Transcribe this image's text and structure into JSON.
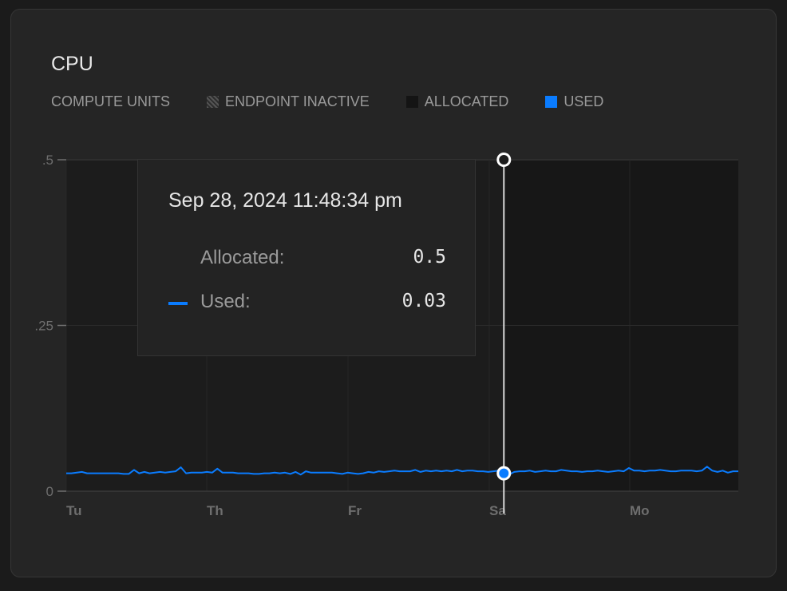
{
  "card": {
    "title": "CPU"
  },
  "legend": {
    "units_label": "COMPUTE UNITS",
    "items": [
      {
        "label": "ENDPOINT INACTIVE",
        "swatch": "hatched"
      },
      {
        "label": "ALLOCATED",
        "swatch": "#141414"
      },
      {
        "label": "USED",
        "swatch": "#0a7cff"
      }
    ]
  },
  "tooltip": {
    "date": "Sep 28, 2024 11:48:34 pm",
    "rows": [
      {
        "label": "Allocated:",
        "value": "0.5"
      },
      {
        "label": "Used:",
        "value": "0.03",
        "color": "#0a7cff"
      }
    ]
  },
  "chart_data": {
    "type": "line",
    "ylim": [
      0,
      0.5
    ],
    "yticks": [
      {
        "value": 0.5,
        "label": ".5"
      },
      {
        "value": 0.25,
        "label": ".25"
      },
      {
        "value": 0,
        "label": "0"
      }
    ],
    "xticks": [
      "Tu",
      "Th",
      "Fr",
      "Sa",
      "Mo"
    ],
    "allocated": 0.5,
    "series": [
      {
        "color": "#0a7cff",
        "values": [
          0.027,
          0.027,
          0.028,
          0.029,
          0.027,
          0.027,
          0.027,
          0.027,
          0.027,
          0.027,
          0.027,
          0.026,
          0.026,
          0.032,
          0.027,
          0.029,
          0.027,
          0.028,
          0.029,
          0.028,
          0.029,
          0.03,
          0.036,
          0.027,
          0.028,
          0.028,
          0.028,
          0.029,
          0.028,
          0.034,
          0.028,
          0.028,
          0.028,
          0.027,
          0.027,
          0.027,
          0.026,
          0.026,
          0.027,
          0.027,
          0.028,
          0.027,
          0.028,
          0.026,
          0.029,
          0.025,
          0.03,
          0.028,
          0.028,
          0.028,
          0.028,
          0.028,
          0.027,
          0.026,
          0.028,
          0.027,
          0.026,
          0.027,
          0.029,
          0.028,
          0.03,
          0.029,
          0.03,
          0.031,
          0.03,
          0.03,
          0.03,
          0.032,
          0.029,
          0.031,
          0.03,
          0.031,
          0.03,
          0.031,
          0.03,
          0.032,
          0.03,
          0.031,
          0.031,
          0.03,
          0.03,
          0.029,
          0.03,
          0.031,
          0.027,
          0.025,
          0.029,
          0.03,
          0.03,
          0.031,
          0.029,
          0.03,
          0.031,
          0.03,
          0.03,
          0.032,
          0.031,
          0.03,
          0.03,
          0.029,
          0.03,
          0.03,
          0.031,
          0.03,
          0.029,
          0.03,
          0.031,
          0.03,
          0.035,
          0.031,
          0.031,
          0.03,
          0.031,
          0.031,
          0.032,
          0.031,
          0.03,
          0.03,
          0.031,
          0.031,
          0.031,
          0.03,
          0.031,
          0.037,
          0.031,
          0.029,
          0.031,
          0.028,
          0.03,
          0.03
        ]
      }
    ],
    "hover_index": 84
  }
}
